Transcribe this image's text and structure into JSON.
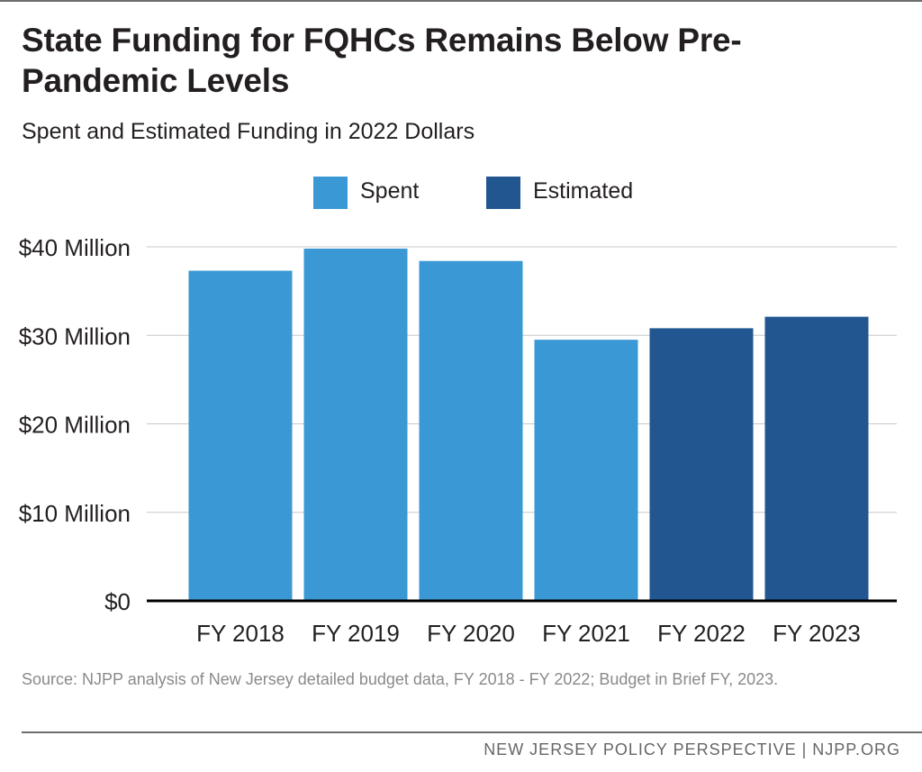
{
  "header": {
    "title": "State Funding for FQHCs Remains Below Pre-Pandemic Levels",
    "subtitle": "Spent and Estimated Funding in 2022 Dollars"
  },
  "chart_data": {
    "type": "bar",
    "categories": [
      "FY 2018",
      "FY 2019",
      "FY 2020",
      "FY 2021",
      "FY 2022",
      "FY 2023"
    ],
    "values": [
      37.3,
      39.8,
      38.4,
      29.5,
      30.8,
      32.1
    ],
    "bar_kind": [
      "Spent",
      "Spent",
      "Spent",
      "Spent",
      "Estimated",
      "Estimated"
    ],
    "legend": [
      {
        "label": "Spent",
        "color": "#3a98d4"
      },
      {
        "label": "Estimated",
        "color": "#215690"
      }
    ],
    "y_ticks": [
      {
        "value": 0,
        "label": "$0"
      },
      {
        "value": 10,
        "label": "$10 Million"
      },
      {
        "value": 20,
        "label": "$20 Million"
      },
      {
        "value": 30,
        "label": "$30 Million"
      },
      {
        "value": 40,
        "label": "$40 Million"
      }
    ],
    "ylim": [
      0,
      40
    ],
    "grid": true,
    "legend_position": "top-center",
    "title": "State Funding for FQHCs Remains Below Pre-Pandemic Levels",
    "subtitle": "Spent and Estimated Funding in 2022 Dollars",
    "xlabel": "",
    "ylabel": ""
  },
  "source_note": "Source: NJPP analysis of New Jersey detailed budget data, FY 2018 - FY 2022; Budget in Brief FY, 2023.",
  "footer": "NEW JERSEY POLICY PERSPECTIVE | NJPP.ORG"
}
